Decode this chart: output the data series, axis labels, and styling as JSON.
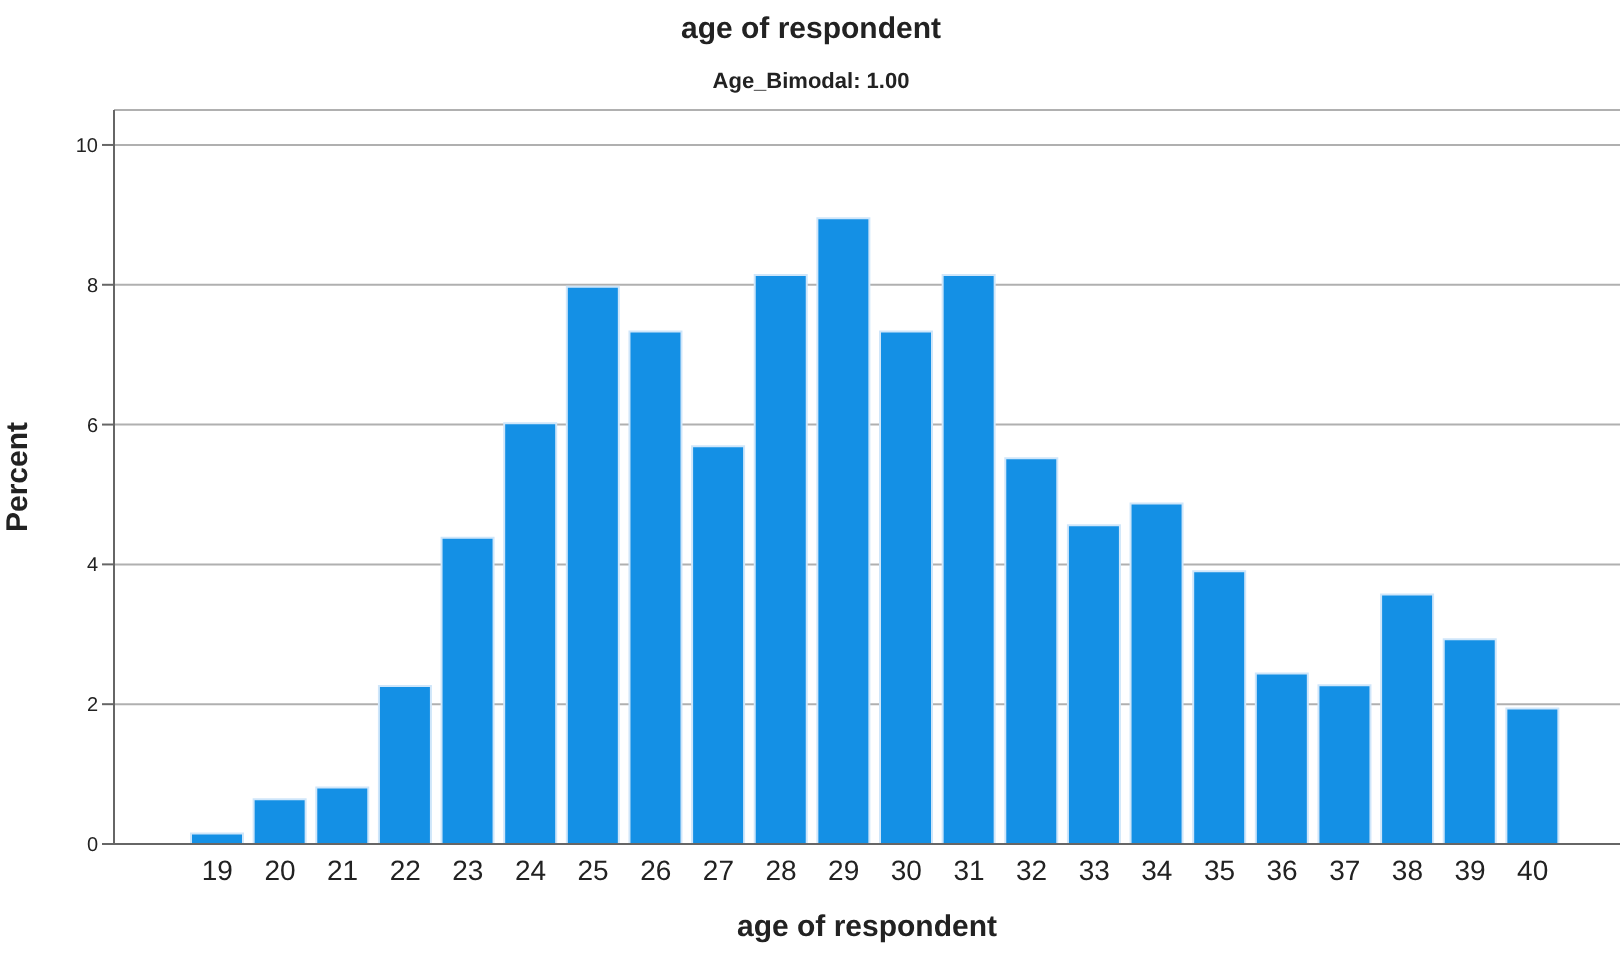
{
  "chart_data": {
    "type": "bar",
    "title": "age of respondent",
    "subtitle": "Age_Bimodal: 1.00",
    "xlabel": "age of respondent",
    "ylabel": "Percent",
    "categories": [
      "19",
      "20",
      "21",
      "22",
      "23",
      "24",
      "25",
      "26",
      "27",
      "28",
      "29",
      "30",
      "31",
      "32",
      "33",
      "34",
      "35",
      "36",
      "37",
      "38",
      "39",
      "40"
    ],
    "values": [
      0.15,
      0.64,
      0.81,
      2.26,
      4.38,
      6.02,
      7.97,
      7.33,
      5.69,
      8.14,
      8.95,
      7.33,
      8.14,
      5.52,
      4.56,
      4.87,
      3.9,
      2.44,
      2.27,
      3.57,
      2.93,
      1.94
    ],
    "color": "#1490e5",
    "ylim": [
      0,
      10.5
    ],
    "yticks": [
      0,
      2,
      4,
      6,
      8,
      10
    ],
    "grid": "y"
  }
}
